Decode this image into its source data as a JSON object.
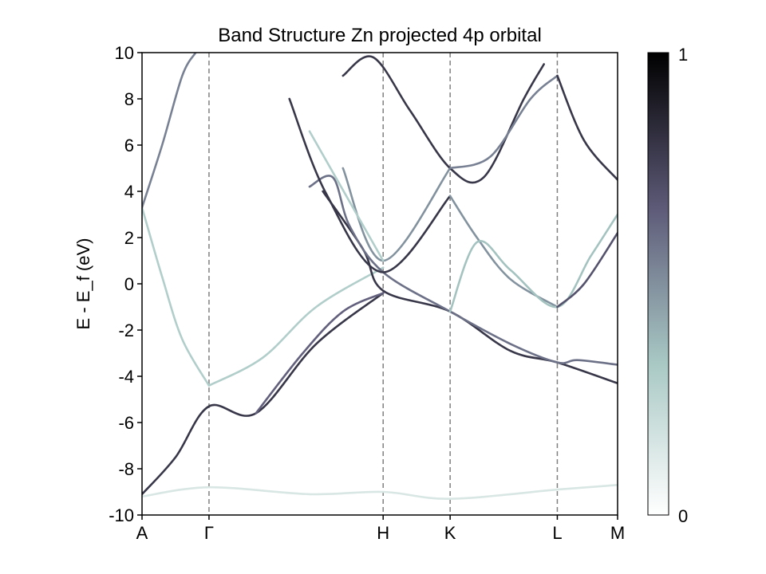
{
  "chart_data": {
    "type": "line",
    "title": "Band Structure Zn projected 4p orbital",
    "xlabel": "",
    "ylabel": "E - E_f (eV)",
    "ylim": [
      -10,
      10
    ],
    "yticks": [
      10,
      8,
      6,
      4,
      2,
      0,
      -2,
      -4,
      -6,
      -8,
      -10
    ],
    "ytick_labels": [
      "10",
      "8",
      "6",
      "4",
      "2",
      "0",
      "-2",
      "-4",
      "-6",
      "-8",
      "-10"
    ],
    "kpath": [
      "A",
      "Γ",
      "H",
      "K",
      "L",
      "M"
    ],
    "kpath_positions": [
      0,
      1,
      3.6,
      4.6,
      6.2,
      7.1
    ],
    "xlim": [
      0,
      7.1
    ],
    "grid": false,
    "legend": "none",
    "colorbar": {
      "min_label": "0",
      "max_label": "1",
      "colors": [
        "#ffffff",
        "#a8c8c4",
        "#5e5b79",
        "#000000"
      ]
    },
    "series": [
      {
        "weight": 0.3,
        "x": [
          0,
          0.3,
          0.6,
          1.0
        ],
        "y": [
          3.3,
          0.3,
          -2.4,
          -4.4
        ]
      },
      {
        "weight": 0.55,
        "x": [
          0,
          0.3,
          0.6,
          0.8
        ],
        "y": [
          3.3,
          6.0,
          9.0,
          10.0
        ]
      },
      {
        "weight": 0.3,
        "x": [
          1.0,
          1.8,
          2.6,
          3.6
        ],
        "y": [
          -4.4,
          -3.2,
          -1.0,
          0.7
        ]
      },
      {
        "weight": 0.8,
        "x": [
          0,
          0.5,
          1.0,
          1.7,
          2.6,
          3.6
        ],
        "y": [
          -9.1,
          -7.5,
          -5.3,
          -5.6,
          -2.6,
          -0.4
        ]
      },
      {
        "weight": 0.65,
        "x": [
          1.7,
          2.4,
          3.0,
          3.6
        ],
        "y": [
          -5.6,
          -3.0,
          -1.2,
          -0.4
        ]
      },
      {
        "weight": 0.8,
        "x": [
          2.7,
          3.3,
          3.6,
          4.6,
          5.5,
          6.2,
          7.1
        ],
        "y": [
          4.0,
          1.5,
          -0.3,
          -1.2,
          -2.9,
          -3.4,
          -4.3
        ]
      },
      {
        "weight": 0.6,
        "x": [
          2.5,
          2.85,
          3.1,
          3.6,
          4.6,
          5.5,
          6.2,
          6.5,
          7.1
        ],
        "y": [
          4.2,
          4.6,
          2.5,
          0.5,
          -1.2,
          -2.6,
          -3.4,
          -3.3,
          -3.5
        ]
      },
      {
        "weight": 0.8,
        "x": [
          2.2,
          2.75,
          3.6,
          4.6
        ],
        "y": [
          8.0,
          3.9,
          0.5,
          3.8
        ]
      },
      {
        "weight": 0.5,
        "x": [
          3.0,
          3.6,
          4.6
        ],
        "y": [
          5.0,
          1.0,
          5.0
        ]
      },
      {
        "weight": 0.3,
        "x": [
          2.5,
          3.6
        ],
        "y": [
          6.6,
          1.0
        ]
      },
      {
        "weight": 0.8,
        "x": [
          3.0,
          3.45,
          4.0,
          4.6,
          5.1,
          5.7,
          6.0
        ],
        "y": [
          9.0,
          9.8,
          7.5,
          5.0,
          4.6,
          8.0,
          9.5
        ]
      },
      {
        "weight": 0.55,
        "x": [
          4.6,
          5.2,
          5.8,
          6.2
        ],
        "y": [
          5.0,
          5.5,
          8.0,
          9.0
        ]
      },
      {
        "weight": 0.5,
        "x": [
          4.6,
          5.0,
          5.5,
          6.2
        ],
        "y": [
          3.8,
          2.0,
          0.2,
          -1.0
        ]
      },
      {
        "weight": 0.35,
        "x": [
          4.6,
          5.0,
          5.5,
          6.2,
          6.7,
          7.1
        ],
        "y": [
          -1.2,
          1.8,
          0.6,
          -1.0,
          1.2,
          3.0
        ]
      },
      {
        "weight": 0.8,
        "x": [
          6.2,
          6.6,
          7.1
        ],
        "y": [
          9.0,
          6.2,
          4.5
        ]
      },
      {
        "weight": 0.7,
        "x": [
          6.2,
          6.6,
          7.1
        ],
        "y": [
          -1.0,
          0.0,
          2.2
        ]
      },
      {
        "weight": 0.15,
        "x": [
          0,
          1.0,
          2.5,
          3.6,
          4.6,
          6.2,
          7.1
        ],
        "y": [
          -9.2,
          -8.8,
          -9.1,
          -9.0,
          -9.3,
          -8.9,
          -8.7
        ]
      }
    ]
  }
}
